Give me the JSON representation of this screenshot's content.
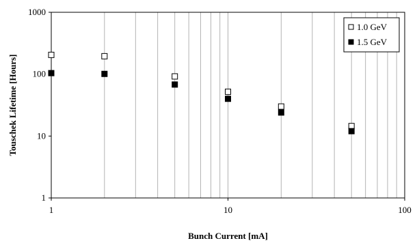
{
  "chart_data": {
    "type": "scatter",
    "xlabel": "Bunch Current [mA]",
    "ylabel": "Touschek Lifetime [Hours]",
    "x_scale": "log",
    "y_scale": "log",
    "xlim": [
      1,
      100
    ],
    "ylim": [
      1,
      1000
    ],
    "x_ticks": [
      1,
      10,
      100
    ],
    "x_tick_labels": [
      "1",
      "10",
      "100"
    ],
    "y_ticks": [
      1,
      10,
      100,
      1000
    ],
    "y_tick_labels": [
      "1",
      "10",
      "100",
      "1000"
    ],
    "grid": "vertical minor and major lines",
    "legend_position": "top-right",
    "series": [
      {
        "name": "1.0 GeV",
        "marker": "open-square",
        "color": "#000000",
        "x": [
          1,
          2,
          5,
          10,
          20,
          50
        ],
        "y": [
          205,
          195,
          92,
          52,
          30,
          14.5
        ]
      },
      {
        "name": "1.5 GeV",
        "marker": "filled-square",
        "color": "#000000",
        "x": [
          1,
          2,
          5,
          10,
          20,
          50
        ],
        "y": [
          104,
          101,
          68,
          40,
          24,
          12
        ]
      }
    ]
  }
}
